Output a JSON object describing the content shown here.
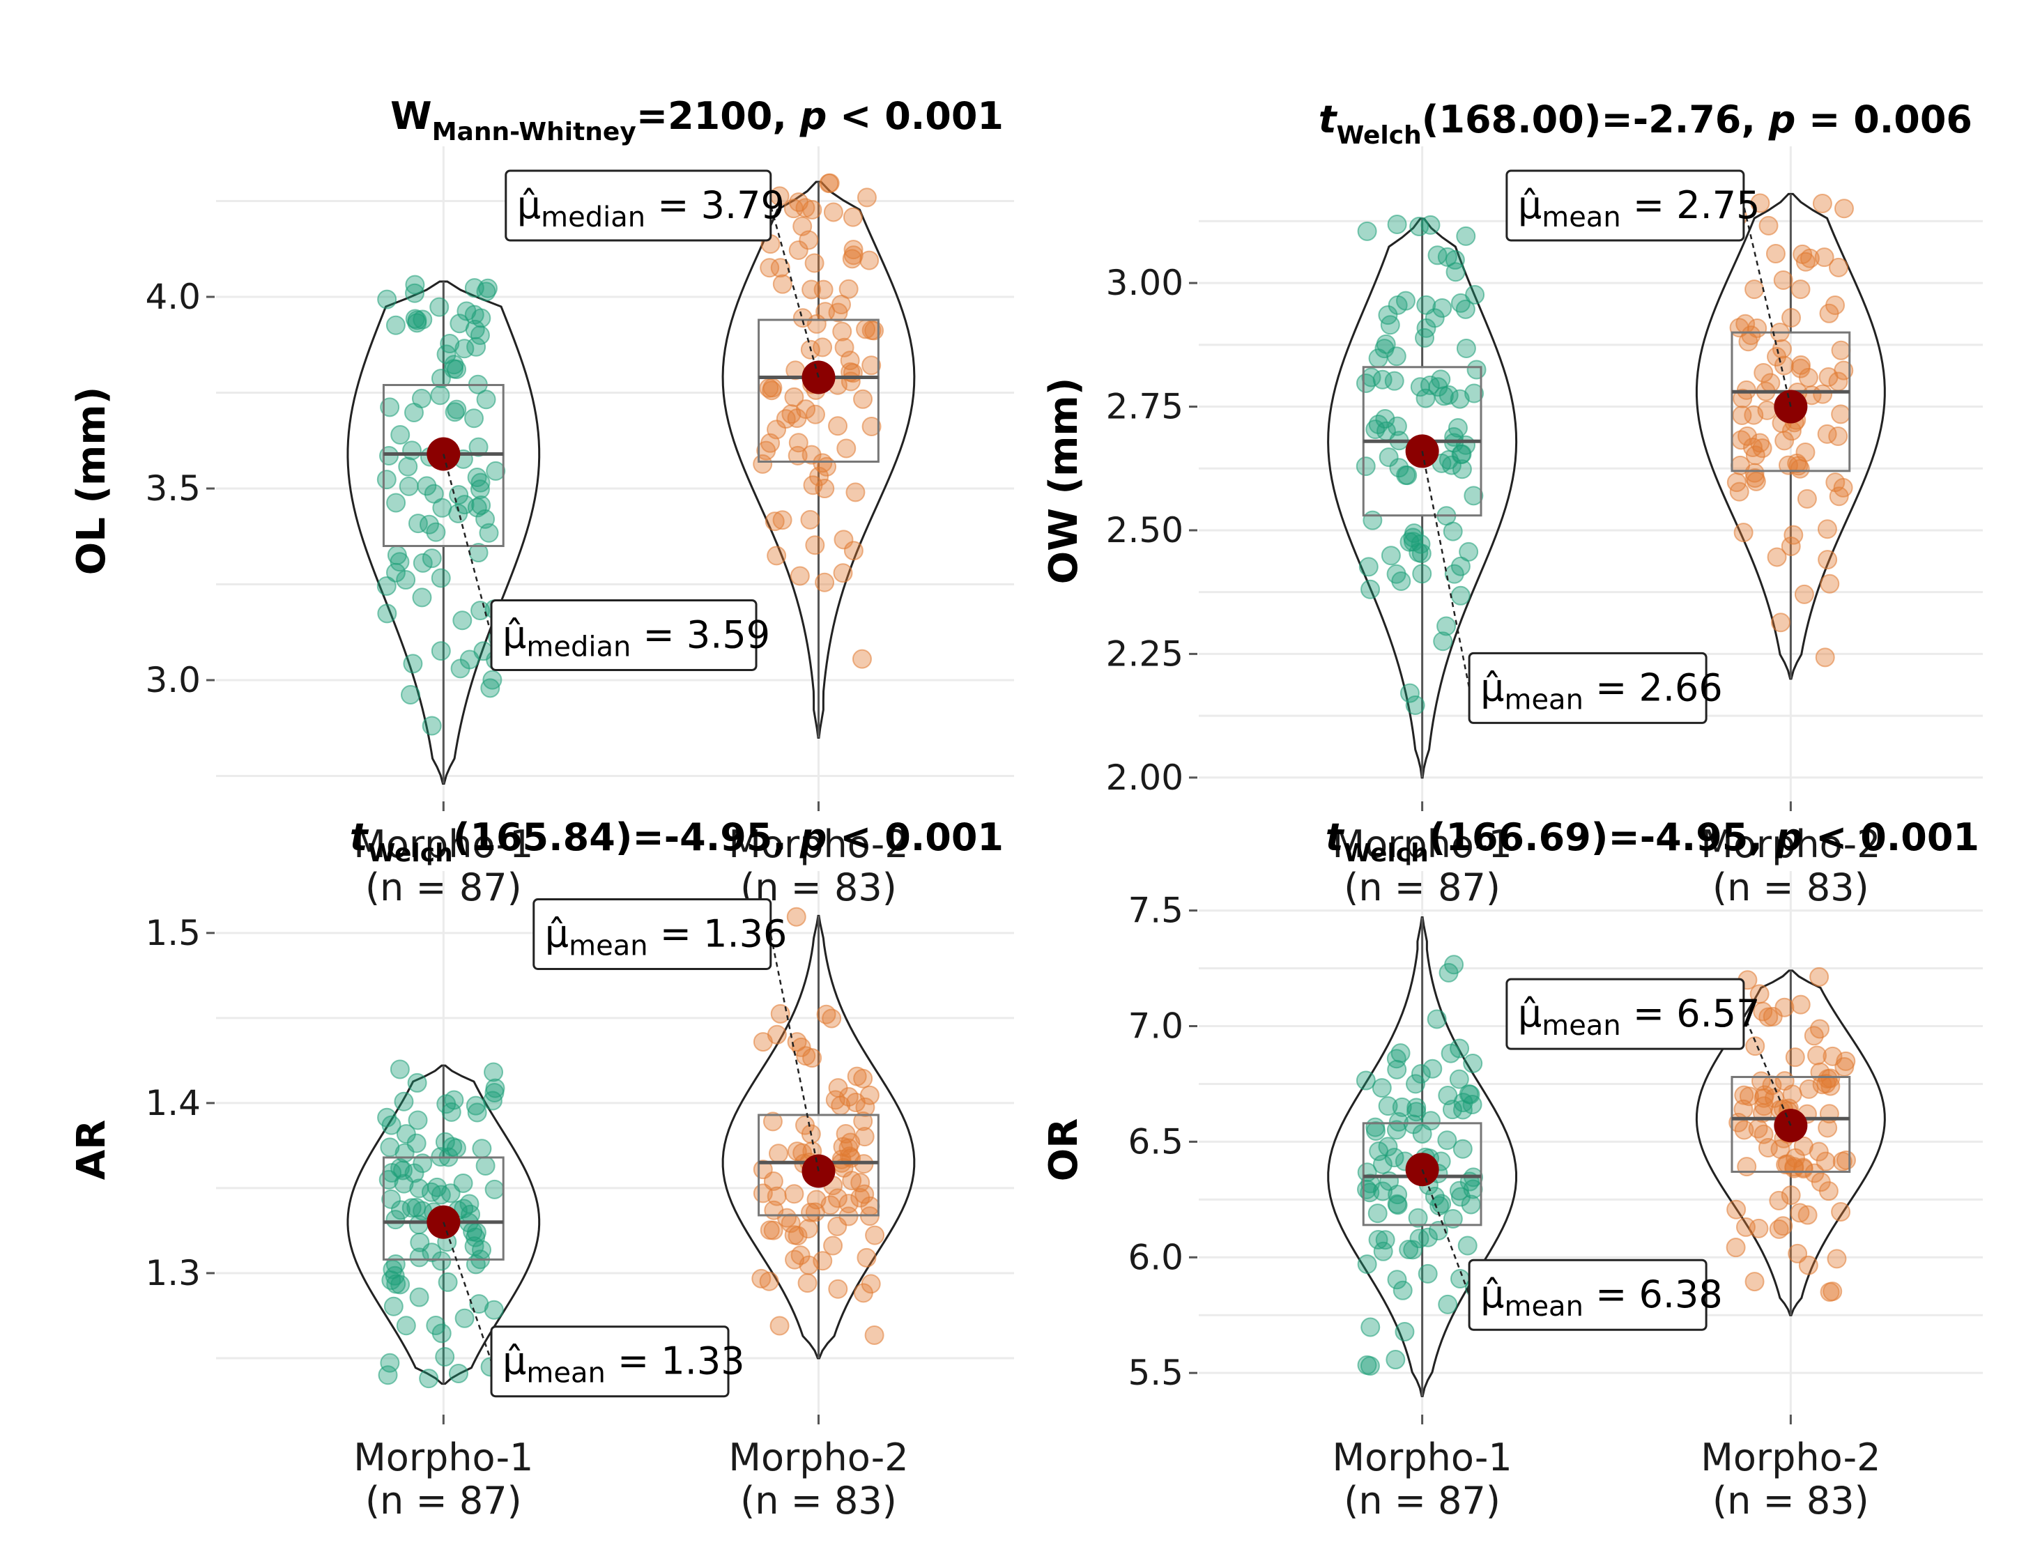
{
  "colors": {
    "group1": "#1b9e77",
    "group2": "#e07a32",
    "mean_dot": "#8b0000",
    "grid": "#ebebeb",
    "outline": "#333333"
  },
  "chart_data": [
    {
      "type": "violin-box",
      "id": "OL",
      "ylabel": "OL (mm)",
      "subtitle": {
        "stat": "W",
        "sub": "Mann-Whitney",
        "rest": "=2100, ",
        "p": "p",
        "ptext": " < 0.001"
      },
      "ylim": [
        2.72,
        4.32
      ],
      "yticks": [
        3.0,
        3.5,
        4.0
      ],
      "ytick_labels": [
        "3.0",
        "3.5",
        "4.0"
      ],
      "categories": [
        "Morpho-1",
        "Morpho-2"
      ],
      "n_labels": [
        "(n = 87)",
        "(n = 83)"
      ],
      "groups": [
        {
          "name": "Morpho-1",
          "n": 87,
          "min": 2.73,
          "q1": 3.35,
          "median": 3.59,
          "q3": 3.77,
          "max": 4.04,
          "center": 3.59,
          "label_kind": "median",
          "label_value": "3.59",
          "label_pos": "below-right"
        },
        {
          "name": "Morpho-2",
          "n": 83,
          "min": 2.85,
          "q1": 3.57,
          "median": 3.79,
          "q3": 3.94,
          "max": 4.3,
          "center": 3.79,
          "label_kind": "median",
          "label_value": "3.79",
          "label_pos": "above-left"
        }
      ]
    },
    {
      "type": "violin-box",
      "id": "OW",
      "ylabel": "OW (mm)",
      "subtitle": {
        "stat": "t",
        "sub": "Welch",
        "rest": "(168.00)=-2.76, ",
        "p": "p",
        "ptext": " = 0.006"
      },
      "ylim": [
        1.98,
        3.22
      ],
      "yticks": [
        2.0,
        2.25,
        2.5,
        2.75,
        3.0
      ],
      "ytick_labels": [
        "2.00",
        "2.25",
        "2.50",
        "2.75",
        "3.00"
      ],
      "categories": [
        "Morpho-1",
        "Morpho-2"
      ],
      "n_labels": [
        "(n = 87)",
        "(n = 83)"
      ],
      "groups": [
        {
          "name": "Morpho-1",
          "n": 87,
          "min": 2.0,
          "q1": 2.53,
          "median": 2.68,
          "q3": 2.83,
          "max": 3.13,
          "center": 2.66,
          "label_kind": "mean",
          "label_value": "2.66",
          "label_pos": "below-right"
        },
        {
          "name": "Morpho-2",
          "n": 83,
          "min": 2.2,
          "q1": 2.62,
          "median": 2.78,
          "q3": 2.9,
          "max": 3.18,
          "center": 2.75,
          "label_kind": "mean",
          "label_value": "2.75",
          "label_pos": "above-left"
        }
      ]
    },
    {
      "type": "violin-box",
      "id": "AR",
      "ylabel": "AR",
      "subtitle": {
        "stat": "t",
        "sub": "Welch",
        "rest": "(165.84)=-4.95, ",
        "p": "p",
        "ptext": " < 0.001"
      },
      "ylim": [
        1.225,
        1.52
      ],
      "yticks": [
        1.3,
        1.4,
        1.5
      ],
      "ytick_labels": [
        "1.3",
        "1.4",
        "1.5"
      ],
      "categories": [
        "Morpho-1",
        "Morpho-2"
      ],
      "n_labels": [
        "(n = 87)",
        "(n = 83)"
      ],
      "groups": [
        {
          "name": "Morpho-1",
          "n": 87,
          "min": 1.235,
          "q1": 1.308,
          "median": 1.33,
          "q3": 1.368,
          "max": 1.422,
          "center": 1.33,
          "label_kind": "mean",
          "label_value": "1.33",
          "label_pos": "below-right"
        },
        {
          "name": "Morpho-2",
          "n": 83,
          "min": 1.25,
          "q1": 1.334,
          "median": 1.365,
          "q3": 1.393,
          "max": 1.51,
          "center": 1.36,
          "label_kind": "mean",
          "label_value": "1.36",
          "label_pos": "above-left"
        }
      ]
    },
    {
      "type": "violin-box",
      "id": "OR",
      "ylabel": "OR",
      "subtitle": {
        "stat": "t",
        "sub": "Welch",
        "rest": "(166.69)=-4.95, ",
        "p": "p",
        "ptext": " < 0.001"
      },
      "ylim": [
        5.38,
        7.55
      ],
      "yticks": [
        5.5,
        6.0,
        6.5,
        7.0,
        7.5
      ],
      "ytick_labels": [
        "5.5",
        "6.0",
        "6.5",
        "7.0",
        "7.5"
      ],
      "categories": [
        "Morpho-1",
        "Morpho-2"
      ],
      "n_labels": [
        "(n = 87)",
        "(n = 83)"
      ],
      "groups": [
        {
          "name": "Morpho-1",
          "n": 87,
          "min": 5.4,
          "q1": 6.14,
          "median": 6.35,
          "q3": 6.58,
          "max": 7.47,
          "center": 6.38,
          "label_kind": "mean",
          "label_value": "6.38",
          "label_pos": "below-right"
        },
        {
          "name": "Morpho-2",
          "n": 83,
          "min": 5.75,
          "q1": 6.37,
          "median": 6.6,
          "q3": 6.78,
          "max": 7.24,
          "center": 6.57,
          "label_kind": "mean",
          "label_value": "6.57",
          "label_pos": "above-left"
        }
      ]
    }
  ]
}
